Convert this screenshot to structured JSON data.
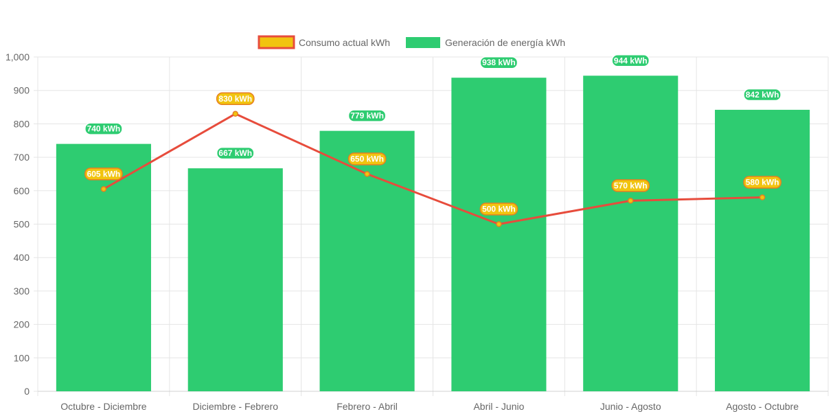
{
  "chart_data": {
    "type": "bar",
    "title": "",
    "xlabel": "",
    "ylabel": "",
    "categories": [
      "Octubre - Diciembre",
      "Diciembre - Febrero",
      "Febrero - Abril",
      "Abril - Junio",
      "Junio - Agosto",
      "Agosto - Octubre"
    ],
    "ylim": [
      0,
      1000
    ],
    "yticks": [
      0,
      100,
      200,
      300,
      400,
      500,
      600,
      700,
      800,
      900,
      1000
    ],
    "ytick_labels": [
      "0",
      "100",
      "200",
      "300",
      "400",
      "500",
      "600",
      "700",
      "800",
      "900",
      "1,000"
    ],
    "grid": true,
    "legend_position": "top-center",
    "series": [
      {
        "name": "Consumo actual kWh",
        "type": "line",
        "values": [
          605,
          830,
          650,
          500,
          570,
          580
        ],
        "labels": [
          "605 kWh",
          "830 kWh",
          "650 kWh",
          "500 kWh",
          "570 kWh",
          "580 kWh"
        ],
        "color": "#e74c3c",
        "point_color": "#f1c40f",
        "label_bg": "#f1c40f",
        "label_border": "#e67e22"
      },
      {
        "name": "Generación de energía kWh",
        "type": "bar",
        "values": [
          740,
          667,
          779,
          938,
          944,
          842
        ],
        "labels": [
          "740 kWh",
          "667 kWh",
          "779 kWh",
          "938 kWh",
          "944 kWh",
          "842 kWh"
        ],
        "color": "#2ecc71",
        "label_bg": "#2ecc71",
        "label_border": "#ffffff"
      }
    ]
  }
}
